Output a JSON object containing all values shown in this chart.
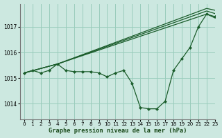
{
  "background_color": "#cce8e0",
  "grid_color": "#99ccbb",
  "line_color": "#1a5c2a",
  "marker_color": "#1a5c2a",
  "xlabel": "Graphe pression niveau de la mer (hPa)",
  "xlim": [
    -0.5,
    23
  ],
  "ylim": [
    1013.4,
    1017.9
  ],
  "yticks": [
    1014,
    1015,
    1016,
    1017
  ],
  "xticks": [
    0,
    1,
    2,
    3,
    4,
    5,
    6,
    7,
    8,
    9,
    10,
    11,
    12,
    13,
    14,
    15,
    16,
    17,
    18,
    19,
    20,
    21,
    22,
    23
  ],
  "series": [
    {
      "x": [
        0,
        1,
        2,
        3,
        4,
        5,
        6,
        7,
        8,
        9,
        10,
        11,
        12,
        13,
        14,
        15,
        16,
        17,
        18,
        19,
        20,
        21,
        22,
        23
      ],
      "y": [
        1015.2,
        1015.3,
        1015.2,
        1015.3,
        1015.55,
        1015.3,
        1015.25,
        1015.25,
        1015.25,
        1015.2,
        1015.05,
        1015.2,
        1015.3,
        1014.8,
        1013.85,
        1013.8,
        1013.8,
        1014.1,
        1015.3,
        1015.75,
        1016.2,
        1017.0,
        1017.5,
        1017.4
      ],
      "has_markers": true
    },
    {
      "x": [
        0,
        4,
        22,
        23
      ],
      "y": [
        1015.2,
        1015.55,
        1017.5,
        1017.35
      ],
      "has_markers": false
    },
    {
      "x": [
        0,
        4,
        22,
        23
      ],
      "y": [
        1015.2,
        1015.55,
        1017.62,
        1017.52
      ],
      "has_markers": false
    },
    {
      "x": [
        0,
        4,
        22,
        23
      ],
      "y": [
        1015.2,
        1015.55,
        1017.72,
        1017.65
      ],
      "has_markers": false
    }
  ]
}
